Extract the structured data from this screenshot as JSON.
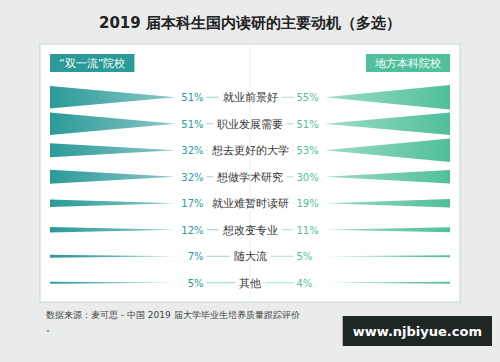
{
  "chart_data": {
    "type": "bar",
    "orientation": "horizontal",
    "title": "2019 届本科生国内读研的主要动机（多选）",
    "categories": [
      "就业前景好",
      "职业发展需要",
      "想去更好的大学",
      "想做学术研究",
      "就业难暂时读研",
      "想改变专业",
      "随大流",
      "其他"
    ],
    "series": [
      {
        "name": "“双一流”院校",
        "color": "#2b9a98",
        "values": [
          51,
          51,
          32,
          32,
          17,
          12,
          7,
          5
        ],
        "value_labels": [
          "51%",
          "51%",
          "32%",
          "32%",
          "17%",
          "12%",
          "7%",
          "5%"
        ]
      },
      {
        "name": "地方本科院校",
        "color": "#4fbf9c",
        "values": [
          55,
          51,
          53,
          30,
          19,
          11,
          5,
          4
        ],
        "value_labels": [
          "55%",
          "51%",
          "53%",
          "30%",
          "19%",
          "11%",
          "5%",
          "4%"
        ]
      }
    ],
    "legend": "top",
    "data_labels": true,
    "tick_labels": false,
    "source": "数据来源：麦可思 - 中国 2019 届大学毕业生培养质量跟踪评价。",
    "watermark": "www.njbiyue.com"
  }
}
